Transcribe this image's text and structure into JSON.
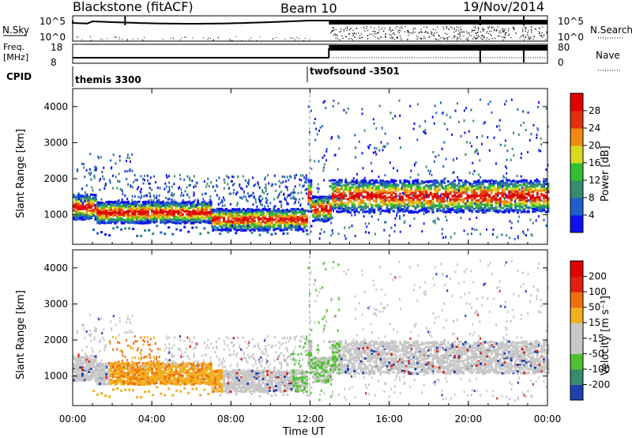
{
  "header": {
    "station": "Blackstone (fitACF)",
    "beam": "Beam 10",
    "date": "19/Nov/2014"
  },
  "status_panels": {
    "nsky_label": "N.Sky",
    "nsky_ticks": [
      "10^5",
      "10^0"
    ],
    "nsearch_label": "N.Search",
    "nsearch_ticks": [
      "10^5",
      "10^0"
    ],
    "freq_label_1": "Freq.",
    "freq_label_2": "[MHz]",
    "freq_ticks": [
      "18",
      "8"
    ],
    "nave_label": "Nave",
    "nave_ticks": [
      "80",
      "0"
    ],
    "cpid_label": "CPID",
    "cpid_entries": [
      {
        "name": "themis 3300",
        "start_hour": 0
      },
      {
        "name": "twofsound -3501",
        "start_hour": 12.95
      }
    ]
  },
  "chart_data": [
    {
      "type": "heatmap",
      "title": "Power",
      "ylabel": "Slant Range [km]",
      "xlabel": "",
      "x_range_hours": [
        0,
        24
      ],
      "ylim": [
        180,
        4500
      ],
      "yticks": [
        "1000",
        "2000",
        "3000",
        "4000"
      ],
      "colorbar": {
        "label": "Power [dB]",
        "ticks": [
          "4",
          "8",
          "12",
          "16",
          "20",
          "24",
          "28"
        ],
        "range": [
          0,
          32
        ],
        "colors": [
          "#1010f0",
          "#2060c8",
          "#3a8a70",
          "#30c030",
          "#d8d820",
          "#f08a10",
          "#e03010",
          "#e00000"
        ]
      },
      "scatter_bands_km": [
        {
          "start_h": 0.0,
          "end_h": 1.2,
          "center": 1200,
          "width": 350
        },
        {
          "start_h": 1.2,
          "end_h": 7.0,
          "center": 1050,
          "width": 300
        },
        {
          "start_h": 7.0,
          "end_h": 11.8,
          "center": 850,
          "width": 300
        },
        {
          "start_h": 12.0,
          "end_h": 13.0,
          "center": 1150,
          "width": 350
        },
        {
          "start_h": 13.0,
          "end_h": 24.0,
          "center": 1500,
          "width": 450
        }
      ]
    },
    {
      "type": "heatmap",
      "title": "Velocity",
      "ylabel": "Slant Range [km]",
      "xlabel": "Time UT",
      "x_range_hours": [
        0,
        24
      ],
      "ylim": [
        180,
        4500
      ],
      "yticks": [
        "1000",
        "2000",
        "3000",
        "4000"
      ],
      "xticks": [
        "00:00",
        "04:00",
        "08:00",
        "12:00",
        "16:00",
        "20:00",
        "00:00"
      ],
      "colorbar": {
        "label": "Velocity [m s⁻¹]",
        "ticks": [
          "200",
          "100",
          "50",
          "15",
          "-15",
          "-50",
          "-100",
          "-200"
        ],
        "colors": [
          "#2040b0",
          "#3a8a70",
          "#50c030",
          "#c8c8c8",
          "#c8c8c8",
          "#f0b020",
          "#f07010",
          "#e02010",
          "#e00000"
        ]
      }
    }
  ]
}
